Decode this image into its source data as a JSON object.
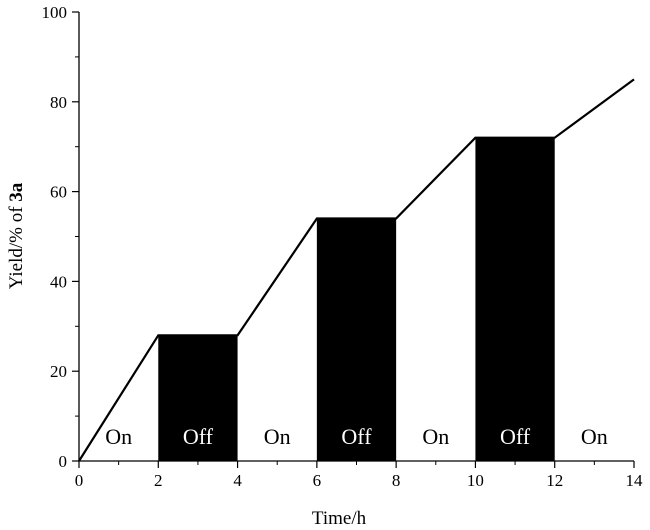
{
  "chart_data": {
    "type": "line",
    "xlabel": "Time/h",
    "ylabel_prefix": "Yield/% of ",
    "ylabel_bold": "3a",
    "xlim": [
      0,
      14
    ],
    "ylim": [
      0,
      100
    ],
    "x_ticks": [
      0,
      2,
      4,
      6,
      8,
      10,
      12,
      14
    ],
    "y_ticks": [
      0,
      20,
      40,
      60,
      80,
      100
    ],
    "grid": false,
    "series": [
      {
        "x": [
          0,
          2,
          4,
          6,
          8,
          10,
          12,
          14
        ],
        "y": [
          0,
          28,
          28,
          54,
          54,
          72,
          72,
          85
        ],
        "color": "#000000"
      }
    ],
    "phases": [
      {
        "label": "On",
        "x0": 0,
        "x1": 2,
        "state": "on"
      },
      {
        "label": "Off",
        "x0": 2,
        "x1": 4,
        "state": "off",
        "value": 28
      },
      {
        "label": "On",
        "x0": 4,
        "x1": 6,
        "state": "on"
      },
      {
        "label": "Off",
        "x0": 6,
        "x1": 8,
        "state": "off",
        "value": 54
      },
      {
        "label": "On",
        "x0": 8,
        "x1": 10,
        "state": "on"
      },
      {
        "label": "Off",
        "x0": 10,
        "x1": 12,
        "state": "off",
        "value": 72
      },
      {
        "label": "On",
        "x0": 12,
        "x1": 14,
        "state": "on"
      }
    ],
    "colors": {
      "off_fill": "#000000",
      "off_text": "#ffffff",
      "on_text": "#000000",
      "line": "#000000"
    }
  }
}
